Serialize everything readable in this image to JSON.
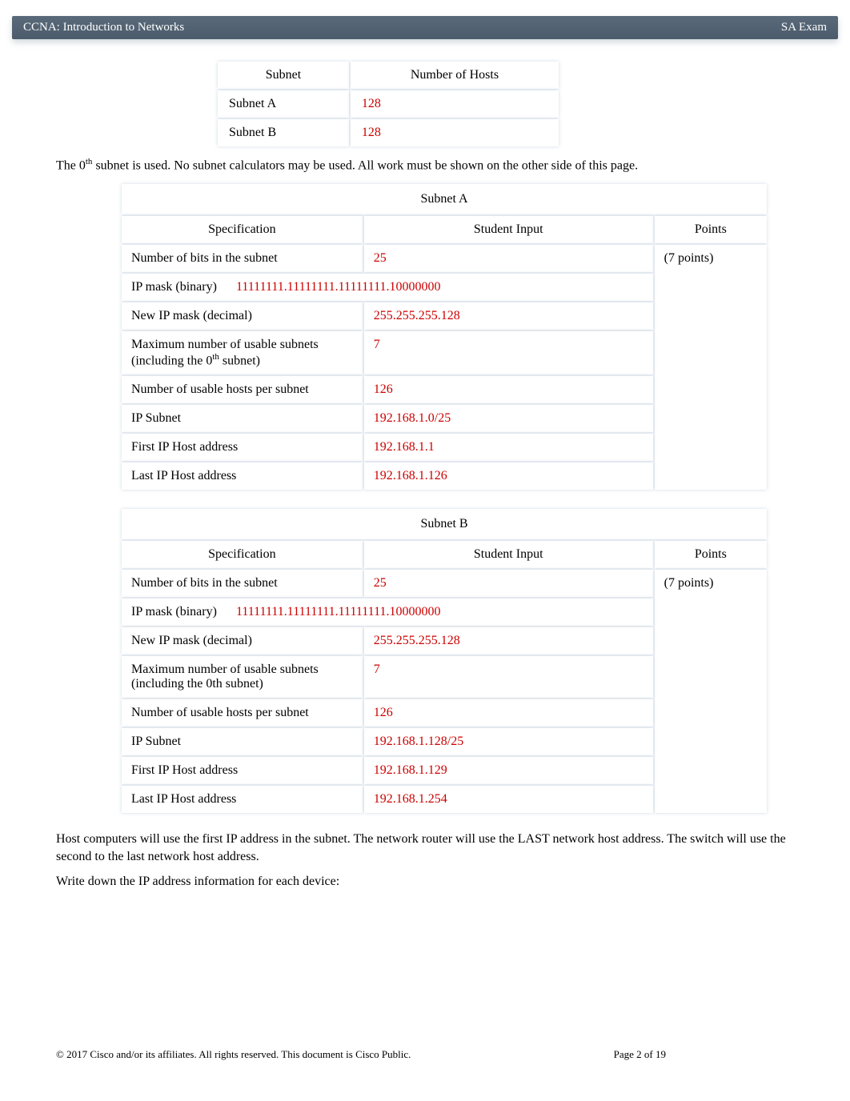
{
  "colors": {
    "header_bg_top": "#5a6a7a",
    "header_bg_bottom": "#4b5b6b",
    "header_text": "#ffffff",
    "body_text": "#000000",
    "answer_text": "#cc0000",
    "cell_shadow": "rgba(120,150,180,0.35)"
  },
  "header": {
    "left": "CCNA: Introduction to Networks",
    "right": "SA Exam"
  },
  "hosts_table": {
    "columns": [
      "Subnet",
      "Number of Hosts"
    ],
    "rows": [
      {
        "subnet": "Subnet A",
        "hosts": "128"
      },
      {
        "subnet": "Subnet B",
        "hosts": "128"
      }
    ]
  },
  "para1_a": "The 0",
  "para1_sup": "th",
  "para1_b": " subnet is used. No subnet calculators may be used. All work must be shown on the other side of this page.",
  "subnetA": {
    "title": "Subnet A",
    "cols": {
      "spec": "Specification",
      "input": "Student Input",
      "points": "Points"
    },
    "points_label": "(7 points)",
    "rows": {
      "bits": {
        "spec": "Number of bits in the subnet",
        "val": "25"
      },
      "mask_bin": {
        "spec": "IP mask (binary)",
        "val": "11111111.11111111.11111111.10000000"
      },
      "mask_dec": {
        "spec": "New IP mask (decimal)",
        "val": "255.255.255.128"
      },
      "max_sub_a": "Maximum number of usable subnets (including the 0",
      "max_sub_sup": "th",
      "max_sub_b": " subnet)",
      "max_sub_val": "7",
      "hosts": {
        "spec": "Number of usable hosts per subnet",
        "val": "126"
      },
      "ip_subnet": {
        "spec": "IP Subnet",
        "val": "192.168.1.0/25"
      },
      "first_ip": {
        "spec": "First IP Host address",
        "val": "192.168.1.1"
      },
      "last_ip": {
        "spec": "Last IP Host address",
        "val": "192.168.1.126"
      }
    }
  },
  "subnetB": {
    "title": "Subnet B",
    "cols": {
      "spec": "Specification",
      "input": "Student Input",
      "points": "Points"
    },
    "points_label": "(7 points)",
    "rows": {
      "bits": {
        "spec": "Number of bits in the subnet",
        "val": "25"
      },
      "mask_bin": {
        "spec": "IP mask (binary)",
        "val": "11111111.11111111.11111111.10000000"
      },
      "mask_dec": {
        "spec": "New IP mask (decimal)",
        "val": "255.255.255.128"
      },
      "max_sub": {
        "spec": "Maximum number of usable subnets (including the 0th subnet)",
        "val": "7"
      },
      "hosts": {
        "spec": "Number of usable hosts per subnet",
        "val": "126"
      },
      "ip_subnet": {
        "spec": "IP Subnet",
        "val": "192.168.1.128/25"
      },
      "first_ip": {
        "spec": "First IP Host address",
        "val": "192.168.1.129"
      },
      "last_ip": {
        "spec": "Last IP Host address",
        "val": "192.168.1.254"
      }
    }
  },
  "para2": "Host computers will use the first IP address in the subnet. The network router will use the LAST network host address. The switch will use the second to the last network host address.",
  "para3": "Write down the IP address information for each device:",
  "footer": {
    "copyright": "© 2017 Cisco and/or its affiliates. All rights reserved. This document is Cisco Public.",
    "page_prefix": "Page ",
    "page_num": "2",
    "page_of": " of 19"
  }
}
